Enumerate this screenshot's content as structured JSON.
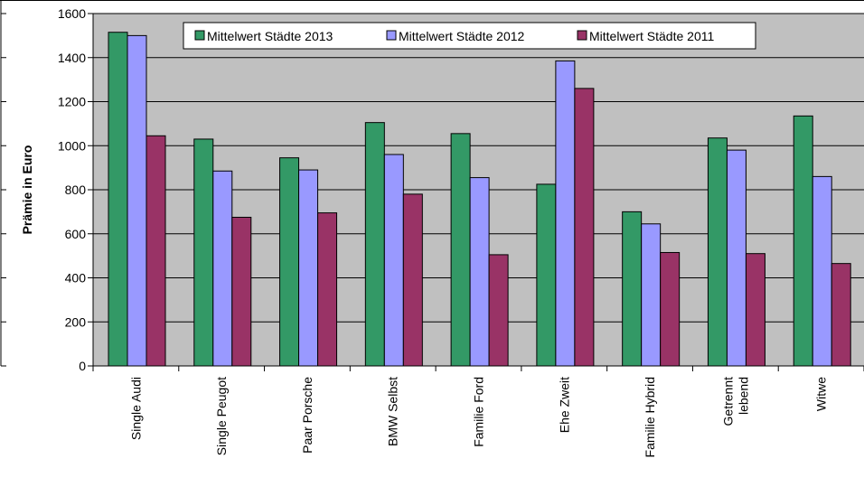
{
  "chart_data": {
    "type": "bar",
    "title": "",
    "xlabel": "",
    "ylabel": "Prämie in Euro",
    "ylim": [
      0,
      1600
    ],
    "yticks": [
      0,
      200,
      400,
      600,
      800,
      1000,
      1200,
      1400,
      1600
    ],
    "grid": true,
    "legend_position": "top",
    "categories": [
      [
        "Single Audi"
      ],
      [
        "Single Peugot"
      ],
      [
        "Paar Porsche"
      ],
      [
        "BMW Selbst"
      ],
      [
        "Familie Ford"
      ],
      [
        "Ehe Zweit"
      ],
      [
        "Familie Hybrid"
      ],
      [
        "Getrennt",
        "lebend"
      ],
      [
        "Witwe"
      ]
    ],
    "series": [
      {
        "name": "Mittelwert Städte 2013",
        "color": "#339966",
        "values": [
          1515,
          1030,
          945,
          1105,
          1055,
          825,
          700,
          1035,
          1135
        ]
      },
      {
        "name": "Mittelwert Städte 2012",
        "color": "#9999ff",
        "values": [
          1500,
          885,
          890,
          960,
          855,
          1385,
          645,
          980,
          860
        ]
      },
      {
        "name": "Mittelwert Städte 2011",
        "color": "#993366",
        "values": [
          1045,
          675,
          695,
          780,
          505,
          1260,
          515,
          510,
          465
        ]
      }
    ],
    "plot_background": "#c0c0c0",
    "grid_color": "#000000"
  }
}
